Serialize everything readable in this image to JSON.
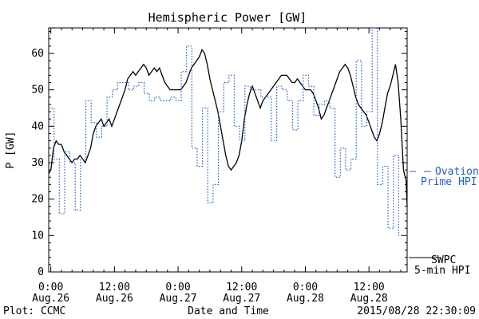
{
  "chart_data": {
    "type": "line",
    "title": "Hemispheric Power [GW]",
    "ylabel": "P [GW]",
    "xlabel": "Date and Time",
    "ylim": [
      0,
      67
    ],
    "y_ticks": [
      0,
      10,
      20,
      30,
      40,
      50,
      60
    ],
    "x_ticks": [
      {
        "hour": 0,
        "time": "0:00",
        "date": "Aug.26"
      },
      {
        "hour": 12,
        "time": "12:00",
        "date": "Aug.26"
      },
      {
        "hour": 24,
        "time": "0:00",
        "date": "Aug.27"
      },
      {
        "hour": 36,
        "time": "12:00",
        "date": "Aug.27"
      },
      {
        "hour": 48,
        "time": "0:00",
        "date": "Aug.28"
      },
      {
        "hour": 60,
        "time": "12:00",
        "date": "Aug.28"
      }
    ],
    "x_range_hours": [
      -0.4,
      67.2
    ],
    "series": [
      {
        "name": "SWPC 5-min HPI",
        "color": "#000000",
        "style": "solid",
        "points": [
          [
            -0.4,
            27
          ],
          [
            0,
            28
          ],
          [
            0.5,
            34
          ],
          [
            1,
            36
          ],
          [
            1.5,
            35
          ],
          [
            2,
            35
          ],
          [
            2.5,
            33
          ],
          [
            3,
            32
          ],
          [
            3.5,
            31
          ],
          [
            4,
            30
          ],
          [
            4.5,
            31
          ],
          [
            5,
            31
          ],
          [
            5.5,
            32
          ],
          [
            6,
            31
          ],
          [
            6.5,
            30
          ],
          [
            7,
            32
          ],
          [
            7.5,
            34
          ],
          [
            8,
            38
          ],
          [
            8.5,
            40
          ],
          [
            9,
            41
          ],
          [
            9.5,
            42
          ],
          [
            10,
            40
          ],
          [
            10.5,
            41
          ],
          [
            11,
            42
          ],
          [
            11.5,
            40
          ],
          [
            12,
            42
          ],
          [
            12.5,
            44
          ],
          [
            13,
            46
          ],
          [
            13.5,
            48
          ],
          [
            14,
            50
          ],
          [
            14.5,
            53
          ],
          [
            15,
            54
          ],
          [
            15.5,
            55
          ],
          [
            16,
            54
          ],
          [
            16.5,
            55
          ],
          [
            17,
            56
          ],
          [
            17.5,
            57
          ],
          [
            18,
            56
          ],
          [
            18.5,
            54
          ],
          [
            19,
            55
          ],
          [
            19.5,
            56
          ],
          [
            20,
            55
          ],
          [
            20.5,
            56
          ],
          [
            21,
            54
          ],
          [
            21.5,
            52
          ],
          [
            22,
            51
          ],
          [
            22.5,
            50
          ],
          [
            23,
            50
          ],
          [
            23.5,
            50
          ],
          [
            24,
            50
          ],
          [
            24.5,
            50
          ],
          [
            25,
            51
          ],
          [
            25.5,
            52
          ],
          [
            26,
            54
          ],
          [
            26.5,
            56
          ],
          [
            27,
            57
          ],
          [
            27.5,
            58
          ],
          [
            28,
            59
          ],
          [
            28.5,
            61
          ],
          [
            29,
            60
          ],
          [
            29.5,
            57
          ],
          [
            30,
            53
          ],
          [
            30.5,
            50
          ],
          [
            31,
            47
          ],
          [
            31.5,
            44
          ],
          [
            32,
            40
          ],
          [
            32.5,
            36
          ],
          [
            33,
            32
          ],
          [
            33.5,
            29
          ],
          [
            34,
            28
          ],
          [
            34.5,
            29
          ],
          [
            35,
            30
          ],
          [
            35.5,
            32
          ],
          [
            36,
            36
          ],
          [
            36.5,
            42
          ],
          [
            37,
            46
          ],
          [
            37.5,
            49
          ],
          [
            38,
            51
          ],
          [
            38.5,
            49
          ],
          [
            39,
            47
          ],
          [
            39.5,
            45
          ],
          [
            40,
            47
          ],
          [
            40.5,
            48
          ],
          [
            41,
            49
          ],
          [
            41.5,
            50
          ],
          [
            42,
            51
          ],
          [
            42.5,
            52
          ],
          [
            43,
            53
          ],
          [
            43.5,
            54
          ],
          [
            44,
            54
          ],
          [
            44.5,
            54
          ],
          [
            45,
            53
          ],
          [
            45.5,
            52
          ],
          [
            46,
            52
          ],
          [
            46.5,
            53
          ],
          [
            47,
            52
          ],
          [
            47.5,
            51
          ],
          [
            48,
            50
          ],
          [
            48.5,
            50
          ],
          [
            49,
            50
          ],
          [
            49.5,
            49
          ],
          [
            50,
            47
          ],
          [
            50.5,
            45
          ],
          [
            51,
            42
          ],
          [
            51.5,
            43
          ],
          [
            52,
            45
          ],
          [
            52.5,
            47
          ],
          [
            53,
            49
          ],
          [
            53.5,
            51
          ],
          [
            54,
            53
          ],
          [
            54.5,
            55
          ],
          [
            55,
            56
          ],
          [
            55.5,
            57
          ],
          [
            56,
            56
          ],
          [
            56.5,
            54
          ],
          [
            57,
            51
          ],
          [
            57.5,
            48
          ],
          [
            58,
            46
          ],
          [
            58.5,
            45
          ],
          [
            59,
            44
          ],
          [
            59.5,
            43
          ],
          [
            60,
            41
          ],
          [
            60.5,
            39
          ],
          [
            61,
            37
          ],
          [
            61.5,
            36
          ],
          [
            62,
            38
          ],
          [
            62.5,
            41
          ],
          [
            63,
            45
          ],
          [
            63.5,
            49
          ],
          [
            64,
            51
          ],
          [
            64.5,
            54
          ],
          [
            65,
            57
          ],
          [
            65.5,
            52
          ],
          [
            66,
            42
          ],
          [
            66.5,
            28
          ],
          [
            67,
            25
          ],
          [
            67.2,
            18
          ]
        ]
      },
      {
        "name": "Ovation Prime HPI",
        "color": "#1f5fbf",
        "style": "dotted-step",
        "points": [
          [
            -0.4,
            45
          ],
          [
            0.6,
            31
          ],
          [
            1.6,
            16
          ],
          [
            2.6,
            33
          ],
          [
            3.6,
            30
          ],
          [
            4.6,
            17
          ],
          [
            5.6,
            31
          ],
          [
            6.6,
            47
          ],
          [
            7.6,
            41
          ],
          [
            8.6,
            37
          ],
          [
            9.6,
            40
          ],
          [
            10.6,
            48
          ],
          [
            11.6,
            50
          ],
          [
            12.6,
            52
          ],
          [
            13.6,
            52
          ],
          [
            14.6,
            50
          ],
          [
            15.6,
            51
          ],
          [
            16.6,
            52
          ],
          [
            17.6,
            49
          ],
          [
            18.6,
            47
          ],
          [
            19.6,
            48
          ],
          [
            20.6,
            47
          ],
          [
            21.6,
            47
          ],
          [
            22.6,
            48
          ],
          [
            23.6,
            47
          ],
          [
            24.6,
            55
          ],
          [
            25.6,
            62
          ],
          [
            26.6,
            34
          ],
          [
            27.6,
            29
          ],
          [
            28.6,
            45
          ],
          [
            29.6,
            19
          ],
          [
            30.6,
            24
          ],
          [
            31.6,
            44
          ],
          [
            32.6,
            52
          ],
          [
            33.6,
            54
          ],
          [
            34.6,
            40
          ],
          [
            35.6,
            36
          ],
          [
            36.6,
            51
          ],
          [
            37.6,
            50
          ],
          [
            38.6,
            50
          ],
          [
            39.6,
            48
          ],
          [
            40.6,
            48
          ],
          [
            41.6,
            36
          ],
          [
            42.6,
            51
          ],
          [
            43.6,
            50
          ],
          [
            44.6,
            47
          ],
          [
            45.6,
            39
          ],
          [
            46.6,
            47
          ],
          [
            47.6,
            54
          ],
          [
            48.6,
            51
          ],
          [
            49.6,
            43
          ],
          [
            50.6,
            46
          ],
          [
            51.6,
            47
          ],
          [
            52.6,
            45
          ],
          [
            53.6,
            26
          ],
          [
            54.6,
            34
          ],
          [
            55.6,
            28
          ],
          [
            56.6,
            31
          ],
          [
            57.6,
            58
          ],
          [
            58.6,
            40
          ],
          [
            59.6,
            44
          ],
          [
            60.6,
            67
          ],
          [
            61.6,
            24
          ],
          [
            62.6,
            29
          ],
          [
            63.6,
            12
          ],
          [
            64.6,
            32
          ],
          [
            65.6,
            10
          ],
          [
            66.6,
            10
          ]
        ]
      }
    ],
    "legend": {
      "placement": "right",
      "entries": [
        {
          "line1": "SWPC",
          "line2": "5-min HPI",
          "color": "#000000"
        },
        {
          "line1": "Ovation",
          "line2": "Prime HPI",
          "color": "#1f5fbf"
        }
      ]
    },
    "footer": {
      "left": "Plot: CCMC",
      "center": "Date and Time",
      "right": "2015/08/28 22:30:09"
    }
  }
}
